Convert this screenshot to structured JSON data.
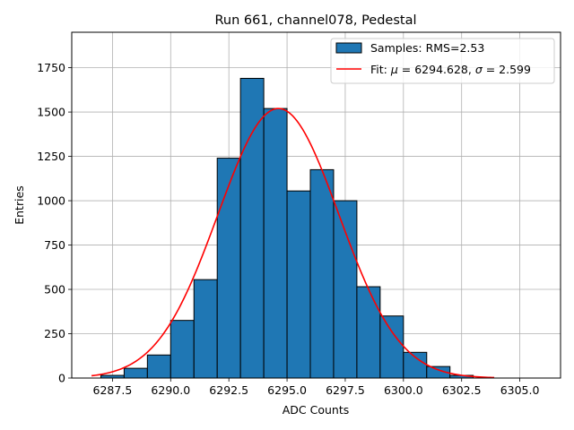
{
  "chart_data": {
    "type": "bar",
    "title": "Run 661, channel078, Pedestal",
    "xlabel": "ADC Counts",
    "ylabel": "Entries",
    "xlim": [
      6285.75,
      6306.75
    ],
    "ylim": [
      0,
      1950
    ],
    "xticks": [
      6287.5,
      6290.0,
      6292.5,
      6295.0,
      6297.5,
      6300.0,
      6302.5,
      6305.0
    ],
    "xtick_labels": [
      "6287.5",
      "6290.0",
      "6292.5",
      "6295.0",
      "6297.5",
      "6300.0",
      "6302.5",
      "6305.0"
    ],
    "yticks": [
      0,
      250,
      500,
      750,
      1000,
      1250,
      1500,
      1750
    ],
    "ytick_labels": [
      "0",
      "250",
      "500",
      "750",
      "1000",
      "1250",
      "1500",
      "1750"
    ],
    "grid": true,
    "legend_position": "top-right",
    "histogram": {
      "name": "Samples: RMS=2.53",
      "color": "#1f77b4",
      "edge_color": "#000000",
      "bins": [
        {
          "x0": 6287.0,
          "x1": 6288.0,
          "count": 15
        },
        {
          "x0": 6288.0,
          "x1": 6289.0,
          "count": 55
        },
        {
          "x0": 6289.0,
          "x1": 6290.0,
          "count": 130
        },
        {
          "x0": 6290.0,
          "x1": 6291.0,
          "count": 325
        },
        {
          "x0": 6291.0,
          "x1": 6292.0,
          "count": 555
        },
        {
          "x0": 6292.0,
          "x1": 6293.0,
          "count": 1240
        },
        {
          "x0": 6293.0,
          "x1": 6294.0,
          "count": 1690
        },
        {
          "x0": 6294.0,
          "x1": 6295.0,
          "count": 1520
        },
        {
          "x0": 6295.0,
          "x1": 6296.0,
          "count": 1055
        },
        {
          "x0": 6296.0,
          "x1": 6297.0,
          "count": 1175
        },
        {
          "x0": 6297.0,
          "x1": 6298.0,
          "count": 1000
        },
        {
          "x0": 6298.0,
          "x1": 6299.0,
          "count": 515
        },
        {
          "x0": 6299.0,
          "x1": 6300.0,
          "count": 350
        },
        {
          "x0": 6300.0,
          "x1": 6301.0,
          "count": 145
        },
        {
          "x0": 6301.0,
          "x1": 6302.0,
          "count": 65
        },
        {
          "x0": 6302.0,
          "x1": 6303.0,
          "count": 15
        }
      ]
    },
    "fit": {
      "name": "Fit: μ = 6294.628, σ = 2.599",
      "name_parts": {
        "prefix": "Fit: ",
        "mu_symbol": "μ",
        "mu_text": " = 6294.628, ",
        "sigma_symbol": "σ",
        "sigma_text": " = 2.599"
      },
      "type": "gaussian",
      "mu": 6294.628,
      "sigma": 2.599,
      "amplitude": 1520,
      "x_range": [
        6286.6,
        6303.9
      ],
      "color": "#ff0000"
    }
  }
}
